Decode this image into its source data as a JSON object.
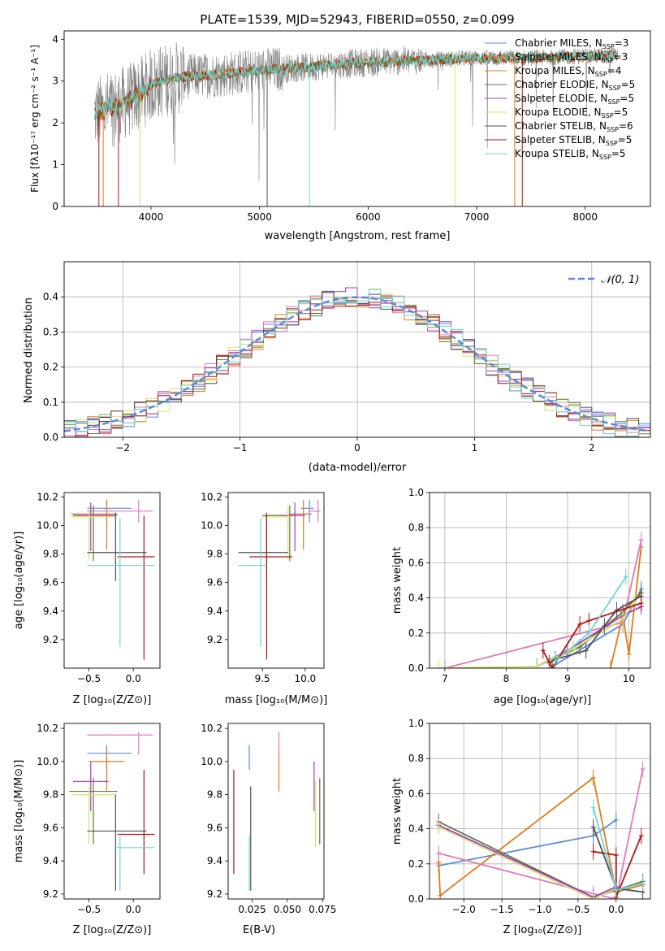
{
  "colors": {
    "blue": "#5b8bd6",
    "orange": "#e07b1a",
    "green": "#5f7a3a",
    "purple": "#a23cc8",
    "yellow": "#d7e36b",
    "gray": "#505050",
    "darkred": "#b01414",
    "cyan": "#6fd5d5",
    "pink": "#e07ab8"
  },
  "chart_data": [
    {
      "id": "spectrum",
      "type": "line",
      "title": "PLATE=1539, MJD=52943, FIBERID=0550, z=0.099",
      "xlabel": "wavelength [Angstrom, rest frame]",
      "ylabel": "Flux [fλ10⁻¹⁷ erg cm⁻² s⁻¹ A⁻¹]",
      "xlim": [
        3200,
        8600
      ],
      "ylim": [
        0,
        4.2
      ],
      "xticks": [
        "4000",
        "5000",
        "6000",
        "7000",
        "8000"
      ],
      "yticks": [
        "0",
        "1",
        "2",
        "3",
        "4"
      ],
      "legend_position": "right",
      "legend": [
        {
          "label": "Chabrier MILES, N",
          "sub": "SSP",
          "post": "=3",
          "color": "blue"
        },
        {
          "label": "Salpeter MILES, N",
          "sub": "SSP",
          "post": "=3",
          "color": "orange"
        },
        {
          "label": "Kroupa MILES, N",
          "sub": "SSP",
          "post": "=4",
          "color": "orange"
        },
        {
          "label": "Chabrier ELODIE, N",
          "sub": "SSP",
          "post": "=5",
          "color": "green"
        },
        {
          "label": "Salpeter ELODIE, N",
          "sub": "SSP",
          "post": "=5",
          "color": "purple"
        },
        {
          "label": "Kroupa ELODIE, N",
          "sub": "SSP",
          "post": "=5",
          "color": "yellow"
        },
        {
          "label": "Chabrier STELIB, N",
          "sub": "SSP",
          "post": "=6",
          "color": "gray"
        },
        {
          "label": "Salpeter STELIB, N",
          "sub": "SSP",
          "post": "=5",
          "color": "darkred"
        },
        {
          "label": "Kroupa STELIB, N",
          "sub": "SSP",
          "post": "=5",
          "color": "cyan"
        }
      ],
      "continuum": [
        [
          3480,
          2.2
        ],
        [
          3600,
          2.35
        ],
        [
          3700,
          2.4
        ],
        [
          3800,
          2.55
        ],
        [
          3900,
          2.7
        ],
        [
          4000,
          2.9
        ],
        [
          4100,
          3.0
        ],
        [
          4300,
          3.1
        ],
        [
          4600,
          3.15
        ],
        [
          5000,
          3.25
        ],
        [
          5500,
          3.35
        ],
        [
          6000,
          3.45
        ],
        [
          6500,
          3.5
        ],
        [
          7000,
          3.55
        ],
        [
          7500,
          3.55
        ],
        [
          8000,
          3.6
        ],
        [
          8300,
          3.62
        ]
      ]
    },
    {
      "id": "residuals",
      "type": "bar",
      "xlabel": "(data-model)/error",
      "ylabel": "Normed distribution",
      "xlim": [
        -2.5,
        2.5
      ],
      "ylim": [
        0,
        0.5
      ],
      "xticks": [
        "−2",
        "−1",
        "0",
        "1",
        "2"
      ],
      "yticks": [
        "0.0",
        "0.1",
        "0.2",
        "0.3",
        "0.4"
      ],
      "legend": "𝒩(0, 1)",
      "legend_position": "top-right",
      "gaussian": {
        "mean": 0,
        "sigma": 1
      }
    },
    {
      "id": "z-age",
      "type": "scatter",
      "xlabel": "Z [log₁₀(Z/Z⊙)]",
      "ylabel": "age  [log₁₀(age/yr)]",
      "xlim": [
        -0.78,
        0.3
      ],
      "ylim": [
        9.0,
        10.23
      ],
      "xticks": [
        "−0.5",
        "0.0"
      ],
      "yticks": [
        "9.2",
        "9.4",
        "9.6",
        "9.8",
        "10.0",
        "10.2"
      ],
      "points": [
        {
          "c": "blue",
          "x": -0.3,
          "xe": [
            -0.52,
            -0.02
          ],
          "y": 10.12,
          "ye": [
            10.02,
            10.18
          ]
        },
        {
          "c": "orange",
          "x": -0.3,
          "xe": [
            -0.7,
            -0.18
          ],
          "y": 10.08,
          "ye": [
            9.83,
            10.18
          ]
        },
        {
          "c": "pink",
          "x": 0.06,
          "xe": [
            -0.52,
            0.22
          ],
          "y": 10.1,
          "ye": [
            10.02,
            10.18
          ]
        },
        {
          "c": "green",
          "x": -0.45,
          "xe": [
            -0.68,
            -0.18
          ],
          "y": 10.07,
          "ye": [
            9.75,
            10.14
          ]
        },
        {
          "c": "purple",
          "x": -0.48,
          "xe": [
            -0.65,
            -0.2
          ],
          "y": 10.07,
          "ye": [
            9.82,
            10.16
          ]
        },
        {
          "c": "yellow",
          "x": -0.5,
          "xe": [
            -0.7,
            -0.2
          ],
          "y": 10.06,
          "ye": [
            9.76,
            10.14
          ]
        },
        {
          "c": "gray",
          "x": -0.2,
          "xe": [
            -0.52,
            0.15
          ],
          "y": 9.81,
          "ye": [
            9.61,
            10.09
          ]
        },
        {
          "c": "darkred",
          "x": 0.12,
          "xe": [
            -0.18,
            0.24
          ],
          "y": 9.78,
          "ye": [
            9.06,
            10.07
          ]
        },
        {
          "c": "cyan",
          "x": -0.15,
          "xe": [
            -0.52,
            0.24
          ],
          "y": 9.72,
          "ye": [
            9.15,
            10.05
          ]
        }
      ]
    },
    {
      "id": "mass-age",
      "type": "scatter",
      "xlabel": "mass [log₁₀(M/M⊙)]",
      "ylabel": "",
      "xlim": [
        9.1,
        10.22
      ],
      "ylim": [
        9.0,
        10.23
      ],
      "xticks": [
        "9.5",
        "10.0"
      ],
      "yticks": [
        "9.2",
        "9.4",
        "9.6",
        "9.8",
        "10.0",
        "10.2"
      ],
      "points": [
        {
          "c": "blue",
          "x": 10.05,
          "xe": [
            9.95,
            10.1
          ],
          "y": 10.12,
          "ye": [
            10.02,
            10.18
          ]
        },
        {
          "c": "orange",
          "x": 9.98,
          "xe": [
            9.82,
            10.08
          ],
          "y": 10.08,
          "ye": [
            9.83,
            10.18
          ]
        },
        {
          "c": "pink",
          "x": 10.15,
          "xe": [
            10.04,
            10.18
          ],
          "y": 10.1,
          "ye": [
            10.02,
            10.18
          ]
        },
        {
          "c": "green",
          "x": 9.82,
          "xe": [
            9.5,
            9.9
          ],
          "y": 10.07,
          "ye": [
            9.75,
            10.14
          ]
        },
        {
          "c": "purple",
          "x": 9.88,
          "xe": [
            9.7,
            10.0
          ],
          "y": 10.07,
          "ye": [
            9.82,
            10.16
          ]
        },
        {
          "c": "yellow",
          "x": 9.8,
          "xe": [
            9.5,
            9.85
          ],
          "y": 10.06,
          "ye": [
            9.76,
            10.14
          ]
        },
        {
          "c": "gray",
          "x": 9.55,
          "xe": [
            9.22,
            9.8
          ],
          "y": 9.81,
          "ye": [
            9.61,
            10.09
          ]
        },
        {
          "c": "darkred",
          "x": 9.55,
          "xe": [
            9.35,
            9.85
          ],
          "y": 9.78,
          "ye": [
            9.06,
            10.07
          ]
        },
        {
          "c": "cyan",
          "x": 9.48,
          "xe": [
            9.22,
            9.55
          ],
          "y": 9.72,
          "ye": [
            9.15,
            10.05
          ]
        }
      ]
    },
    {
      "id": "age-weight",
      "type": "line",
      "xlabel": "age  [log₁₀(age/yr)]",
      "ylabel": "mass weight",
      "xlim": [
        6.75,
        10.35
      ],
      "ylim": [
        0,
        1
      ],
      "xticks": [
        "7",
        "8",
        "9",
        "10"
      ],
      "yticks": [
        "0.0",
        "0.2",
        "0.4",
        "0.6",
        "0.8",
        "1.0"
      ],
      "series": [
        {
          "c": "blue",
          "x": [
            8.8,
            9.9,
            10.2
          ],
          "y": [
            0.02,
            0.25,
            0.45
          ]
        },
        {
          "c": "orange",
          "x": [
            9.7,
            9.9,
            10.0,
            10.2
          ],
          "y": [
            0.0,
            0.3,
            0.08,
            0.69
          ]
        },
        {
          "c": "pink",
          "x": [
            7.0,
            9.9,
            10.2
          ],
          "y": [
            0.0,
            0.26,
            0.73
          ]
        },
        {
          "c": "green",
          "x": [
            8.5,
            9.2,
            9.9,
            10.2
          ],
          "y": [
            0.01,
            0.12,
            0.32,
            0.43
          ]
        },
        {
          "c": "purple",
          "x": [
            8.5,
            9.0,
            9.9,
            10.2
          ],
          "y": [
            0.01,
            0.1,
            0.3,
            0.35
          ]
        },
        {
          "c": "yellow",
          "x": [
            6.9,
            8.5,
            9.1,
            9.9,
            10.1
          ],
          "y": [
            0.0,
            0.01,
            0.11,
            0.28,
            0.38
          ]
        },
        {
          "c": "gray",
          "x": [
            8.7,
            8.8,
            9.3,
            9.6,
            9.8,
            10.2
          ],
          "y": [
            0.03,
            0.05,
            0.1,
            0.24,
            0.33,
            0.41
          ]
        },
        {
          "c": "darkred",
          "x": [
            8.6,
            8.75,
            9.2,
            9.35,
            10.2
          ],
          "y": [
            0.1,
            0.0,
            0.25,
            0.27,
            0.37
          ]
        },
        {
          "c": "cyan",
          "x": [
            8.8,
            9.35,
            9.95
          ],
          "y": [
            0.04,
            0.2,
            0.52
          ]
        }
      ]
    },
    {
      "id": "z-mass",
      "type": "scatter",
      "xlabel": "Z [log₁₀(Z/Z⊙)]",
      "ylabel": "mass [log₁₀(M/M⊙)]",
      "xlim": [
        -0.78,
        0.3
      ],
      "ylim": [
        9.17,
        10.23
      ],
      "xticks": [
        "−0.5",
        "0.0"
      ],
      "yticks": [
        "9.2",
        "9.4",
        "9.6",
        "9.8",
        "10.0",
        "10.2"
      ],
      "points": [
        {
          "c": "blue",
          "x": -0.3,
          "xe": [
            -0.52,
            -0.02
          ],
          "y": 10.05,
          "ye": [
            9.95,
            10.1
          ]
        },
        {
          "c": "orange",
          "x": -0.3,
          "xe": [
            -0.5,
            -0.1
          ],
          "y": 10.0,
          "ye": [
            9.82,
            10.08
          ]
        },
        {
          "c": "pink",
          "x": 0.06,
          "xe": [
            -0.52,
            0.22
          ],
          "y": 10.16,
          "ye": [
            10.04,
            10.18
          ]
        },
        {
          "c": "green",
          "x": -0.45,
          "xe": [
            -0.72,
            -0.18
          ],
          "y": 9.82,
          "ye": [
            9.5,
            9.9
          ]
        },
        {
          "c": "purple",
          "x": -0.48,
          "xe": [
            -0.68,
            -0.28
          ],
          "y": 9.88,
          "ye": [
            9.7,
            10.0
          ]
        },
        {
          "c": "yellow",
          "x": -0.5,
          "xe": [
            -0.7,
            -0.2
          ],
          "y": 9.8,
          "ye": [
            9.5,
            9.85
          ]
        },
        {
          "c": "gray",
          "x": -0.2,
          "xe": [
            -0.52,
            0.15
          ],
          "y": 9.58,
          "ye": [
            9.22,
            9.8
          ]
        },
        {
          "c": "darkred",
          "x": 0.12,
          "xe": [
            -0.18,
            0.24
          ],
          "y": 9.56,
          "ye": [
            9.32,
            9.95
          ]
        },
        {
          "c": "cyan",
          "x": -0.15,
          "xe": [
            -0.2,
            0.24
          ],
          "y": 9.48,
          "ye": [
            9.22,
            9.55
          ]
        }
      ]
    },
    {
      "id": "ebv-mass",
      "type": "scatter",
      "xlabel": "E(B-V)",
      "ylabel": "",
      "xlim": [
        0.008,
        0.076
      ],
      "ylim": [
        9.17,
        10.23
      ],
      "xticks": [
        "0.025",
        "0.050",
        "0.075"
      ],
      "yticks": [
        "9.2",
        "9.4",
        "9.6",
        "9.8",
        "10.0",
        "10.2"
      ],
      "points": [
        {
          "c": "blue",
          "x": 0.023,
          "y": 10.05,
          "ye": [
            9.95,
            10.1
          ]
        },
        {
          "c": "orange",
          "x": 0.044,
          "y": 10.0,
          "ye": [
            9.82,
            10.08
          ]
        },
        {
          "c": "pink",
          "x": 0.044,
          "y": 10.16,
          "ye": [
            10.04,
            10.18
          ]
        },
        {
          "c": "green",
          "x": 0.073,
          "y": 9.82,
          "ye": [
            9.5,
            9.9
          ]
        },
        {
          "c": "purple",
          "x": 0.069,
          "y": 9.88,
          "ye": [
            9.7,
            10.0
          ]
        },
        {
          "c": "yellow",
          "x": 0.07,
          "y": 9.8,
          "ye": [
            9.48,
            9.88
          ]
        },
        {
          "c": "gray",
          "x": 0.024,
          "y": 9.58,
          "ye": [
            9.22,
            9.85
          ]
        },
        {
          "c": "darkred",
          "x": 0.012,
          "y": 9.56,
          "ye": [
            9.32,
            9.95
          ]
        },
        {
          "c": "cyan",
          "x": 0.023,
          "y": 9.48,
          "ye": [
            9.22,
            9.55
          ]
        }
      ]
    },
    {
      "id": "z-weight",
      "type": "line",
      "xlabel": "Z [log₁₀(Z/Z⊙)]",
      "ylabel": "mass weight",
      "xlim": [
        -2.45,
        0.45
      ],
      "ylim": [
        0,
        1
      ],
      "xticks": [
        "−2.0",
        "−1.5",
        "−1.0",
        "−0.5",
        "0.0"
      ],
      "yticks": [
        "0.0",
        "0.2",
        "0.4",
        "0.6",
        "0.8",
        "1.0"
      ],
      "series": [
        {
          "c": "blue",
          "x": [
            -2.33,
            -0.3,
            0.0
          ],
          "y": [
            0.19,
            0.36,
            0.45
          ]
        },
        {
          "c": "orange",
          "x": [
            -2.33,
            -2.31,
            -0.3,
            0.0,
            0.35
          ],
          "y": [
            0.21,
            0.02,
            0.69,
            0.04,
            0.08
          ]
        },
        {
          "c": "pink",
          "x": [
            -2.33,
            -0.3,
            0.0,
            0.35
          ],
          "y": [
            0.26,
            0.03,
            0.0,
            0.74
          ]
        },
        {
          "c": "green",
          "x": [
            -2.33,
            -0.3,
            0.0,
            0.35
          ],
          "y": [
            0.44,
            0.01,
            0.05,
            0.1
          ]
        },
        {
          "c": "purple",
          "x": [
            -2.33,
            -0.3,
            0.0
          ],
          "y": [
            0.42,
            0.01,
            0.07
          ]
        },
        {
          "c": "yellow",
          "x": [
            -2.33,
            -0.3,
            0.0
          ],
          "y": [
            0.41,
            0.0,
            0.06
          ]
        },
        {
          "c": "gray",
          "x": [
            -0.3,
            0.0,
            0.35
          ],
          "y": [
            0.41,
            0.06,
            0.04
          ]
        },
        {
          "c": "darkred",
          "x": [
            -0.3,
            0.0,
            0.0,
            0.33
          ],
          "y": [
            0.27,
            0.25,
            0.01,
            0.36
          ]
        },
        {
          "c": "cyan",
          "x": [
            -0.3,
            0.0,
            0.35
          ],
          "y": [
            0.52,
            0.05,
            0.09
          ]
        }
      ]
    }
  ]
}
